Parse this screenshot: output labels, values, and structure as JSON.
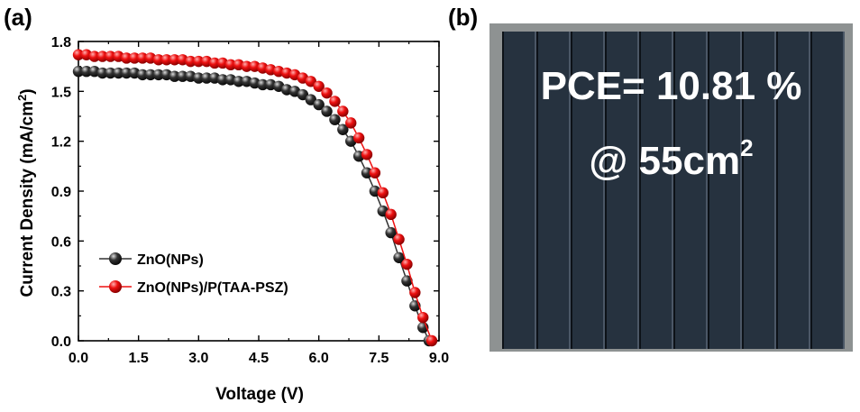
{
  "chart_data": {
    "type": "line",
    "panel": "(a)",
    "title": "",
    "xlabel": "Voltage (V)",
    "ylabel_main": "Current Density (mA/cm",
    "ylabel_sup": "2",
    "ylabel_close": ")",
    "xlim": [
      0,
      9
    ],
    "ylim": [
      0,
      1.8
    ],
    "xticks": [
      "0.0",
      "1.5",
      "3.0",
      "4.5",
      "6.0",
      "7.5",
      "9.0"
    ],
    "yticks": [
      "0.0",
      "0.3",
      "0.6",
      "0.9",
      "1.2",
      "1.5",
      "1.8"
    ],
    "legend_position": "lower-left",
    "series": [
      {
        "name": "ZnO(NPs)",
        "color": "#303030",
        "x": [
          0.0,
          0.2,
          0.4,
          0.6,
          0.8,
          1.0,
          1.2,
          1.4,
          1.6,
          1.8,
          2.0,
          2.2,
          2.4,
          2.6,
          2.8,
          3.0,
          3.2,
          3.4,
          3.6,
          3.8,
          4.0,
          4.2,
          4.4,
          4.6,
          4.8,
          5.0,
          5.2,
          5.4,
          5.6,
          5.8,
          6.0,
          6.2,
          6.4,
          6.6,
          6.8,
          7.0,
          7.2,
          7.4,
          7.6,
          7.8,
          8.0,
          8.2,
          8.4,
          8.6,
          8.75
        ],
        "y": [
          1.62,
          1.62,
          1.62,
          1.61,
          1.61,
          1.61,
          1.61,
          1.61,
          1.6,
          1.6,
          1.6,
          1.6,
          1.59,
          1.59,
          1.59,
          1.58,
          1.58,
          1.58,
          1.57,
          1.57,
          1.56,
          1.56,
          1.55,
          1.54,
          1.54,
          1.53,
          1.51,
          1.5,
          1.48,
          1.45,
          1.42,
          1.38,
          1.33,
          1.27,
          1.2,
          1.11,
          1.01,
          0.9,
          0.78,
          0.65,
          0.5,
          0.36,
          0.21,
          0.08,
          0.0
        ]
      },
      {
        "name": "ZnO(NPs)/P(TAA-PSZ)",
        "color": "#ee1111",
        "x": [
          0.0,
          0.2,
          0.4,
          0.6,
          0.8,
          1.0,
          1.2,
          1.4,
          1.6,
          1.8,
          2.0,
          2.2,
          2.4,
          2.6,
          2.8,
          3.0,
          3.2,
          3.4,
          3.6,
          3.8,
          4.0,
          4.2,
          4.4,
          4.6,
          4.8,
          5.0,
          5.2,
          5.4,
          5.6,
          5.8,
          6.0,
          6.2,
          6.4,
          6.6,
          6.8,
          7.0,
          7.2,
          7.4,
          7.6,
          7.8,
          8.0,
          8.2,
          8.4,
          8.6,
          8.82
        ],
        "y": [
          1.72,
          1.72,
          1.71,
          1.71,
          1.71,
          1.71,
          1.7,
          1.7,
          1.7,
          1.7,
          1.69,
          1.69,
          1.69,
          1.69,
          1.68,
          1.68,
          1.68,
          1.67,
          1.67,
          1.66,
          1.66,
          1.65,
          1.65,
          1.64,
          1.63,
          1.62,
          1.61,
          1.6,
          1.58,
          1.56,
          1.53,
          1.49,
          1.44,
          1.38,
          1.31,
          1.22,
          1.12,
          1.01,
          0.89,
          0.76,
          0.61,
          0.46,
          0.29,
          0.14,
          0.0
        ]
      }
    ]
  },
  "photo": {
    "panel": "(b)",
    "pce_line1": "PCE= 10.81 %",
    "pce_line2": "@ 55cm",
    "pce_line2_sup": "2"
  }
}
